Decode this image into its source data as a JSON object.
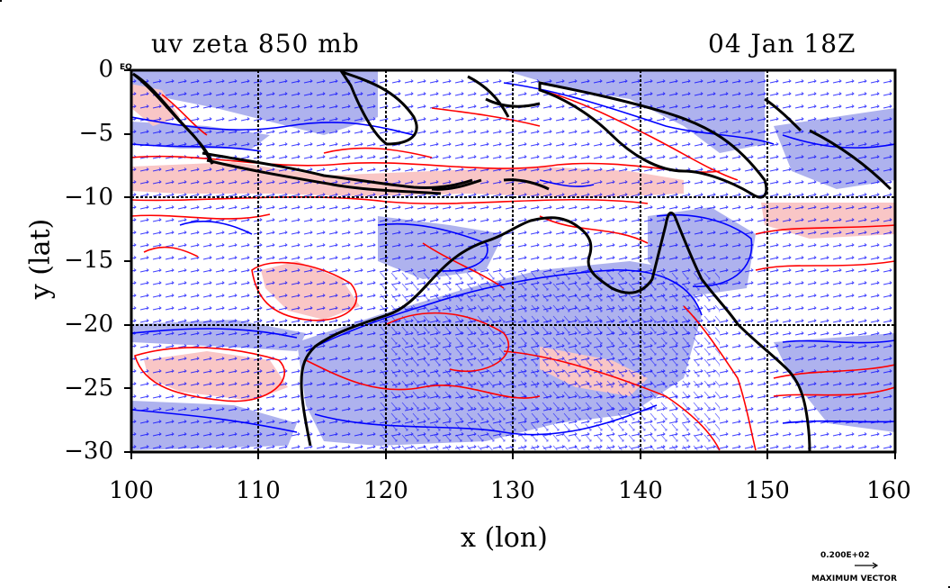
{
  "title_left": "uv zeta 850 mb",
  "title_right": "04 Jan 18Z",
  "axes": {
    "xlabel": "x (lon)",
    "ylabel": "y (lat)",
    "x_ticks": [
      "100",
      "110",
      "120",
      "130",
      "140",
      "150",
      "160"
    ],
    "y_ticks": [
      "0",
      "−5",
      "−10",
      "−15",
      "−20",
      "−25",
      "−30"
    ],
    "y_top_extra": "EQ",
    "x_range": [
      100,
      160
    ],
    "y_range": [
      -30,
      0
    ],
    "gridlines": [
      110,
      120,
      130,
      140,
      150
    ],
    "grid_lat": [
      -10,
      -20
    ]
  },
  "legend": {
    "magnitude": "0.200E+02",
    "label": "MAXIMUM VECTOR"
  },
  "colors": {
    "positive_fill": "#f9c6c6",
    "negative_fill": "#aeb2ee",
    "positive_contour": "#ff0000",
    "negative_contour": "#0000ff",
    "vector": "#0000ff",
    "coastline": "#000000"
  }
}
